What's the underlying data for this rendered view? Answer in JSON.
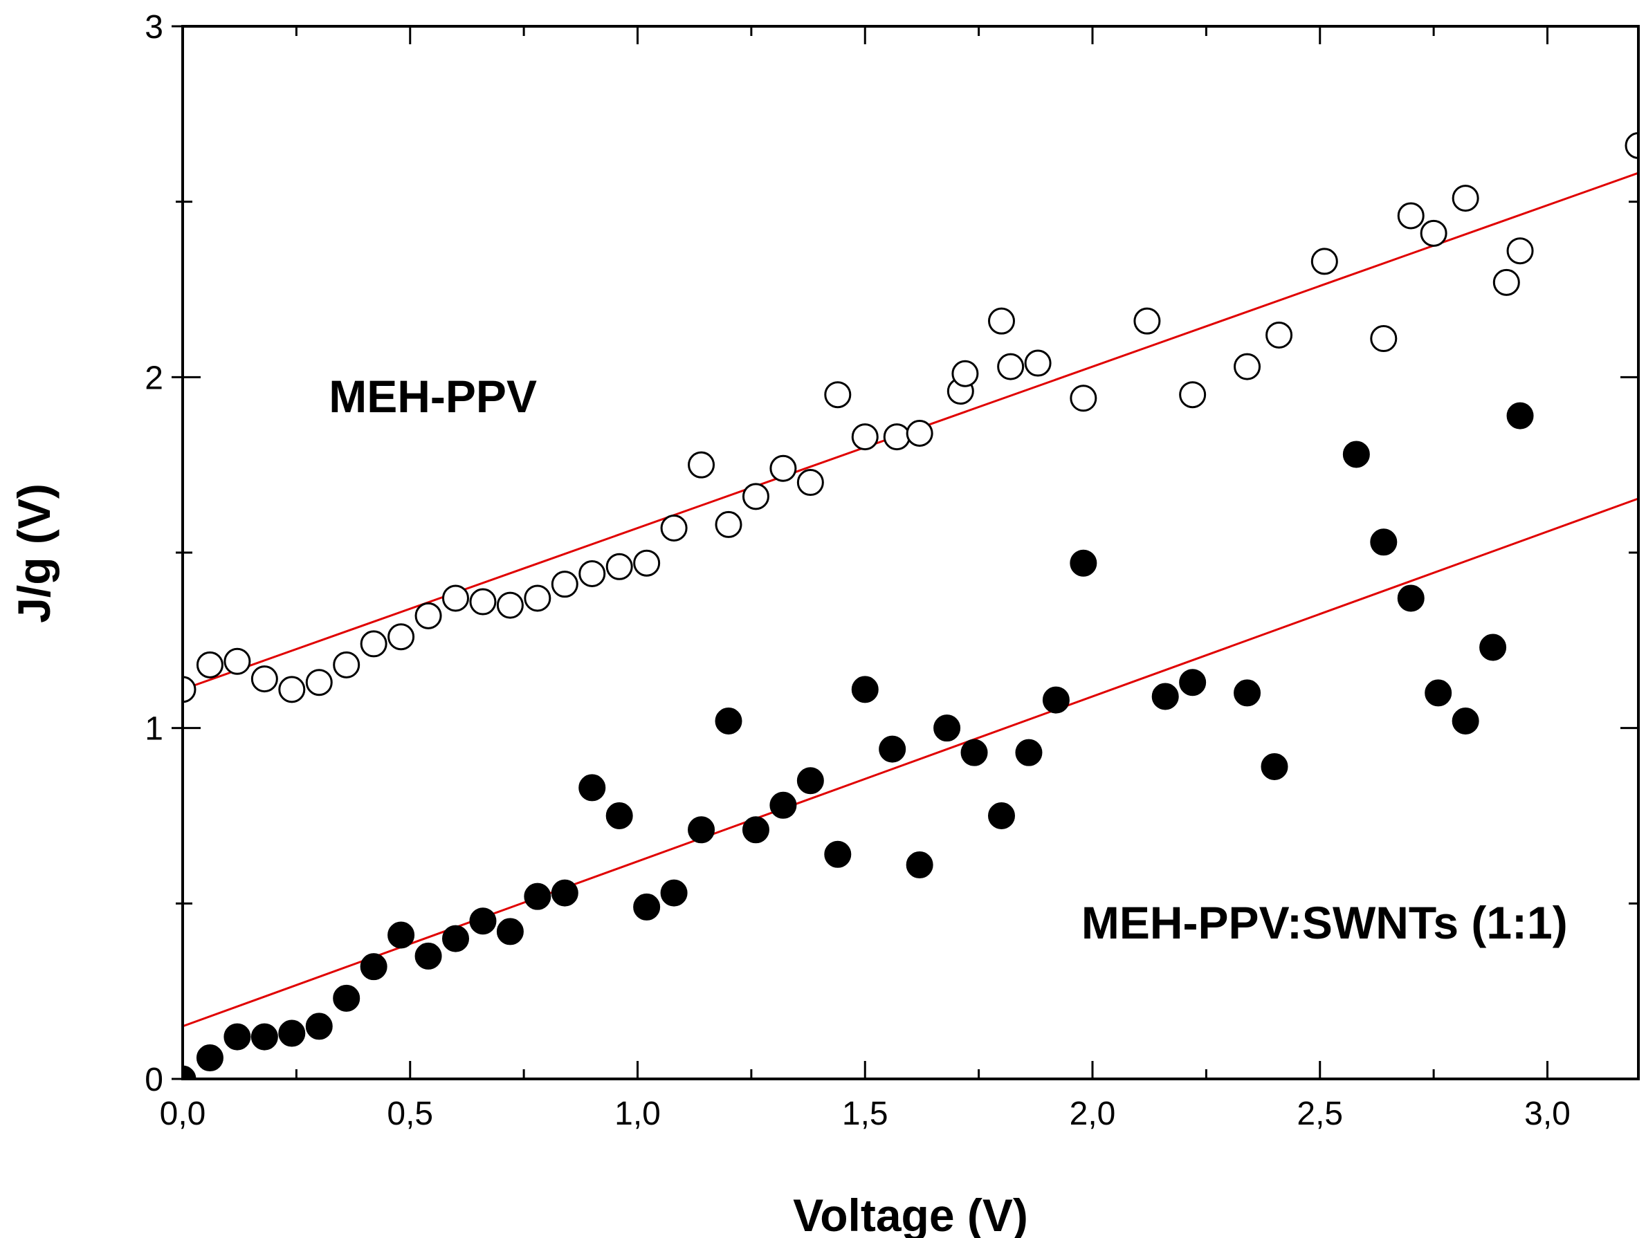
{
  "chart_data": {
    "type": "scatter",
    "title": "",
    "xlabel": "Voltage (V)",
    "ylabel": "J/g (V)",
    "xlim": [
      0,
      3.2
    ],
    "ylim": [
      0,
      3
    ],
    "grid": false,
    "x_ticks": [
      {
        "value": 0.0,
        "label": "0,0"
      },
      {
        "value": 0.5,
        "label": "0,5"
      },
      {
        "value": 1.0,
        "label": "1,0"
      },
      {
        "value": 1.5,
        "label": "1,5"
      },
      {
        "value": 2.0,
        "label": "2,0"
      },
      {
        "value": 2.5,
        "label": "2,5"
      },
      {
        "value": 3.0,
        "label": "3,0"
      }
    ],
    "y_ticks": [
      {
        "value": 0,
        "label": "0"
      },
      {
        "value": 1,
        "label": "1"
      },
      {
        "value": 2,
        "label": "2"
      },
      {
        "value": 3,
        "label": "3"
      }
    ],
    "fit_color": "#e00000",
    "annotations": [
      {
        "text": "MEH-PPV",
        "x": 0.55,
        "y": 1.9
      },
      {
        "text": "MEH-PPV:SWNTs (1:1)",
        "x": 2.51,
        "y": 0.4
      }
    ],
    "series": [
      {
        "name": "MEH-PPV",
        "marker": "open-circle",
        "fit": {
          "intercept": 1.11,
          "slope": 0.46
        },
        "x": [
          0.0,
          0.06,
          0.12,
          0.18,
          0.24,
          0.3,
          0.36,
          0.42,
          0.48,
          0.54,
          0.6,
          0.66,
          0.72,
          0.78,
          0.84,
          0.9,
          0.96,
          1.02,
          1.08,
          1.14,
          1.2,
          1.26,
          1.32,
          1.38,
          1.44,
          1.5,
          1.57,
          1.62,
          1.71,
          1.72,
          1.8,
          1.82,
          1.88,
          1.98,
          2.12,
          2.22,
          2.34,
          2.41,
          2.51,
          2.64,
          2.7,
          2.75,
          2.82,
          2.91,
          2.94,
          3.2
        ],
        "y": [
          1.11,
          1.18,
          1.19,
          1.14,
          1.11,
          1.13,
          1.18,
          1.24,
          1.26,
          1.32,
          1.37,
          1.36,
          1.35,
          1.37,
          1.41,
          1.44,
          1.46,
          1.47,
          1.57,
          1.75,
          1.58,
          1.66,
          1.74,
          1.7,
          1.95,
          1.83,
          1.83,
          1.84,
          1.96,
          2.01,
          2.16,
          2.03,
          2.04,
          1.94,
          2.16,
          1.95,
          2.03,
          2.12,
          2.33,
          2.11,
          2.46,
          2.41,
          2.51,
          2.27,
          2.36,
          2.66
        ]
      },
      {
        "name": "MEH-PPV:SWNTs (1:1)",
        "marker": "filled-circle",
        "fit": {
          "intercept": 0.15,
          "slope": 0.47
        },
        "x": [
          0.0,
          0.06,
          0.12,
          0.18,
          0.24,
          0.3,
          0.36,
          0.42,
          0.48,
          0.54,
          0.6,
          0.66,
          0.72,
          0.78,
          0.84,
          0.9,
          0.96,
          1.02,
          1.08,
          1.14,
          1.2,
          1.26,
          1.32,
          1.38,
          1.44,
          1.5,
          1.56,
          1.62,
          1.68,
          1.74,
          1.8,
          1.86,
          1.92,
          1.98,
          2.16,
          2.22,
          2.34,
          2.4,
          2.58,
          2.64,
          2.7,
          2.76,
          2.82,
          2.88,
          2.94
        ],
        "y": [
          0.0,
          0.06,
          0.12,
          0.12,
          0.13,
          0.15,
          0.23,
          0.32,
          0.41,
          0.35,
          0.4,
          0.45,
          0.42,
          0.52,
          0.53,
          0.83,
          0.75,
          0.49,
          0.53,
          0.71,
          1.02,
          0.71,
          0.78,
          0.85,
          0.64,
          1.11,
          0.94,
          0.61,
          1.0,
          0.93,
          0.75,
          0.93,
          1.08,
          1.47,
          1.09,
          1.13,
          1.1,
          0.89,
          1.78,
          1.53,
          1.37,
          1.1,
          1.02,
          1.23,
          1.89
        ]
      }
    ]
  }
}
